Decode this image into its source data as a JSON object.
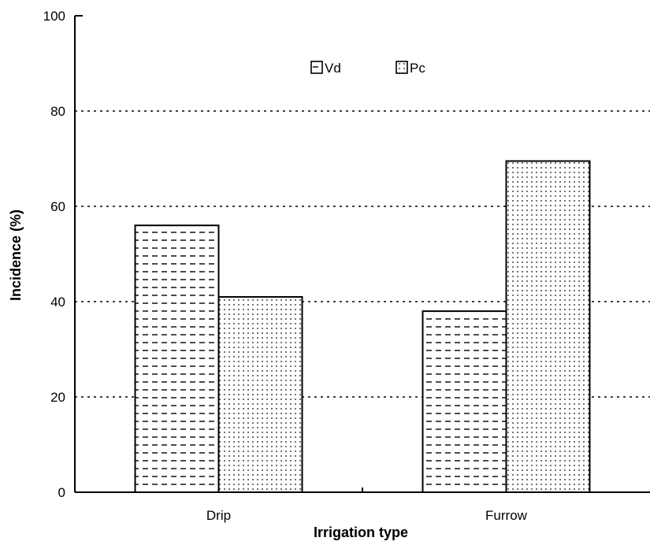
{
  "chart_data": {
    "type": "bar",
    "title": "",
    "xlabel": "Irrigation type",
    "ylabel": "Incidence (%)",
    "categories": [
      "Drip",
      "Furrow"
    ],
    "series": [
      {
        "name": "Vd",
        "values": [
          56,
          38
        ],
        "pattern": "dashes"
      },
      {
        "name": "Pc",
        "values": [
          41,
          69.5
        ],
        "pattern": "dots"
      }
    ],
    "ylim": [
      0,
      100
    ],
    "yticks": [
      0,
      20,
      40,
      60,
      80,
      100
    ],
    "grid": "horizontal dotted",
    "legend_position": "top-center",
    "bar_fill_color": "#ffffff",
    "mark_color": "#000000"
  }
}
